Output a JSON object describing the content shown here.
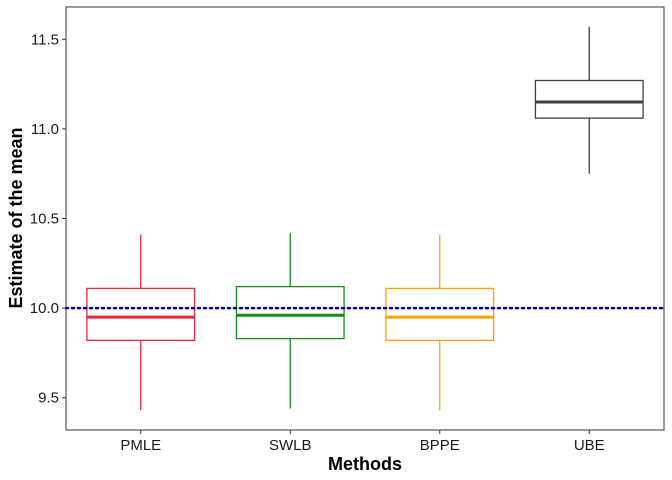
{
  "chart_data": {
    "type": "boxplot",
    "title": "",
    "xlabel": "Methods",
    "ylabel": "Estimate of the mean",
    "ylim": [
      9.32,
      11.68
    ],
    "yticks": [
      9.5,
      10.0,
      10.5,
      11.0,
      11.5
    ],
    "ytick_labels": [
      "9.5",
      "10.0",
      "10.5",
      "11.0",
      "11.5"
    ],
    "grid": false,
    "legend": "none",
    "reference_line": {
      "y": 10.0,
      "style": "dotted",
      "color": "#00008b"
    },
    "categories": [
      "PMLE",
      "SWLB",
      "BPPE",
      "UBE"
    ],
    "series": [
      {
        "category": "PMLE",
        "min": 9.43,
        "q1": 9.82,
        "median": 9.95,
        "q3": 10.11,
        "max": 10.41,
        "color": "#e8263a"
      },
      {
        "category": "SWLB",
        "min": 9.44,
        "q1": 9.83,
        "median": 9.96,
        "q3": 10.12,
        "max": 10.42,
        "color": "#1a8a1a"
      },
      {
        "category": "BPPE",
        "min": 9.43,
        "q1": 9.82,
        "median": 9.95,
        "q3": 10.11,
        "max": 10.41,
        "color": "#ff9f00"
      },
      {
        "category": "UBE",
        "min": 10.75,
        "q1": 11.06,
        "median": 11.15,
        "q3": 11.27,
        "max": 11.57,
        "color": "#404040"
      }
    ]
  }
}
